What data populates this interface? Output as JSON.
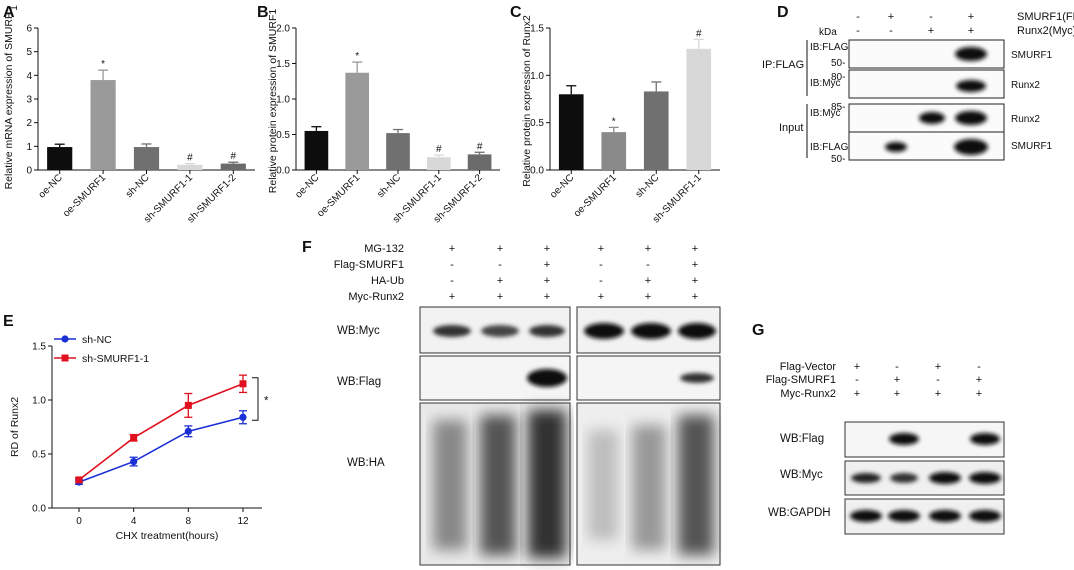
{
  "panel_letters": {
    "A": "A",
    "B": "B",
    "C": "C",
    "D": "D",
    "E": "E",
    "F": "F",
    "G": "G"
  },
  "chart_data": [
    {
      "panel": "A",
      "type": "bar",
      "ylabel": "Relative mRNA expression of SMURF",
      "ylabel_super": "1",
      "categories": [
        "oe-NC",
        "oe-SMURF1",
        "sh-NC",
        "sh-SMURF1-1",
        "sh-SMURF1-2"
      ],
      "values": [
        0.97,
        3.8,
        0.97,
        0.22,
        0.27
      ],
      "errors": [
        0.12,
        0.42,
        0.13,
        0.05,
        0.06
      ],
      "colors": [
        "#0d0d0d",
        "#9a9a9a",
        "#707070",
        "#d8d8d8",
        "#6b6b6b"
      ],
      "markers": [
        "",
        "*",
        "",
        "#",
        "#"
      ],
      "ylim": [
        0,
        6
      ],
      "yticks": [
        "0",
        "1",
        "2",
        "3",
        "4",
        "5",
        "6"
      ]
    },
    {
      "panel": "B",
      "type": "bar",
      "ylabel": "Relative protein expression of SMURF1",
      "categories": [
        "oe-NC",
        "oe-SMURF1",
        "sh-NC",
        "sh-SMURF1-1",
        "sh-SMURF1-2"
      ],
      "values": [
        0.55,
        1.37,
        0.52,
        0.18,
        0.22
      ],
      "errors": [
        0.06,
        0.15,
        0.05,
        0.03,
        0.03
      ],
      "colors": [
        "#0d0d0d",
        "#9a9a9a",
        "#707070",
        "#d8d8d8",
        "#6b6b6b"
      ],
      "markers": [
        "",
        "*",
        "",
        "#",
        "#"
      ],
      "ylim": [
        0,
        2.0
      ],
      "yticks": [
        "0.0",
        "0.5",
        "1.0",
        "1.5",
        "2.0"
      ]
    },
    {
      "panel": "C",
      "type": "bar",
      "ylabel": "Relative protein expression of Runx2",
      "categories": [
        "oe-NC",
        "oe-SMURF1",
        "sh-NC",
        "sh-SMURF1-1"
      ],
      "values": [
        0.8,
        0.4,
        0.83,
        1.28
      ],
      "errors": [
        0.09,
        0.05,
        0.1,
        0.1
      ],
      "colors": [
        "#0d0d0d",
        "#8a8a8a",
        "#707070",
        "#d8d8d8"
      ],
      "markers": [
        "",
        "*",
        "",
        "#"
      ],
      "ylim": [
        0,
        1.5
      ],
      "yticks": [
        "0.0",
        "0.5",
        "1.0",
        "1.5"
      ]
    },
    {
      "panel": "E",
      "type": "line",
      "xlabel": "CHX treatment(hours)",
      "ylabel": "RD of Runx2",
      "x": [
        0,
        4,
        8,
        12
      ],
      "xticks": [
        "0",
        "4",
        "8",
        "12"
      ],
      "yticks": [
        "0.0",
        "0.5",
        "1.0",
        "1.5"
      ],
      "ylim": [
        0,
        1.5
      ],
      "series": [
        {
          "name": "sh-NC",
          "values": [
            0.24,
            0.43,
            0.71,
            0.84
          ],
          "errors": [
            0.02,
            0.04,
            0.05,
            0.06
          ],
          "color": "#1a2fd6",
          "marker": "circle"
        },
        {
          "name": "sh-SMURF1-1",
          "values": [
            0.26,
            0.65,
            0.95,
            1.15
          ],
          "errors": [
            0.02,
            0.03,
            0.11,
            0.08
          ],
          "color": "#e0101e",
          "marker": "square"
        }
      ],
      "significance": "*",
      "legend": "top-left"
    }
  ],
  "blot_D": {
    "conditions": [
      {
        "label": "SMURF1(FLAG)",
        "signs": [
          "-",
          "+",
          "-",
          "+"
        ]
      },
      {
        "label": "Runx2(Myc)",
        "signs": [
          "-",
          "-",
          "+",
          "+"
        ]
      }
    ],
    "kda_label": "kDa",
    "ip_label": "IP:FLAG",
    "input_label": "Input",
    "rows": [
      {
        "ib": "IB:FLAG",
        "kda": "50-",
        "protein": "SMURF1"
      },
      {
        "ib": "IB:Myc",
        "kda": "80-",
        "protein": "Runx2"
      },
      {
        "ib": "IB:Myc",
        "kda": "85-",
        "protein": "Runx2"
      },
      {
        "ib": "IB:FLAG",
        "kda": "50-",
        "protein": "SMURF1"
      }
    ]
  },
  "blot_F": {
    "conditions": [
      {
        "label": "MG-132",
        "signs": [
          "+",
          "+",
          "+",
          "+",
          "+",
          "+"
        ]
      },
      {
        "label": "Flag-SMURF1",
        "signs": [
          "-",
          "-",
          "+",
          "-",
          "-",
          "+"
        ]
      },
      {
        "label": "HA-Ub",
        "signs": [
          "-",
          "+",
          "+",
          "-",
          "+",
          "+"
        ]
      },
      {
        "label": "Myc-Runx2",
        "signs": [
          "+",
          "+",
          "+",
          "+",
          "+",
          "+"
        ]
      }
    ],
    "rows": [
      {
        "label": "WB:Myc"
      },
      {
        "label": "WB:Flag"
      },
      {
        "label": "WB:HA"
      }
    ]
  },
  "blot_G": {
    "conditions": [
      {
        "label": "Flag-Vector",
        "signs": [
          "+",
          "-",
          "+",
          "-"
        ]
      },
      {
        "label": "Flag-SMURF1",
        "signs": [
          "-",
          "+",
          "-",
          "+"
        ]
      },
      {
        "label": "Myc-Runx2",
        "signs": [
          "+",
          "+",
          "+",
          "+"
        ]
      }
    ],
    "rows": [
      {
        "label": "WB:Flag"
      },
      {
        "label": "WB:Myc"
      },
      {
        "label": "WB:GAPDH"
      }
    ]
  }
}
